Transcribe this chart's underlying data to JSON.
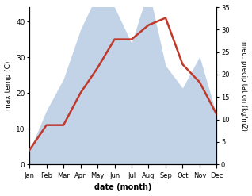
{
  "months": [
    "Jan",
    "Feb",
    "Mar",
    "Apr",
    "May",
    "Jun",
    "Jul",
    "Aug",
    "Sep",
    "Oct",
    "Nov",
    "Dec"
  ],
  "temperature": [
    4,
    11,
    11,
    20,
    27,
    35,
    35,
    39,
    41,
    28,
    23,
    14
  ],
  "precipitation": [
    3,
    12,
    19,
    30,
    38,
    35,
    27,
    39,
    22,
    17,
    24,
    11
  ],
  "temp_color": "#c0392b",
  "precip_color": "#b8cce4",
  "temp_ylim": [
    0,
    44
  ],
  "precip_ylim": [
    0,
    35
  ],
  "temp_yticks": [
    0,
    10,
    20,
    30,
    40
  ],
  "precip_yticks": [
    0,
    5,
    10,
    15,
    20,
    25,
    30,
    35
  ],
  "ylabel_left": "max temp (C)",
  "ylabel_right": "med. precipitation (kg/m2)",
  "xlabel": "date (month)",
  "background_color": "#ffffff",
  "line_width": 1.8,
  "figsize": [
    3.18,
    2.47
  ],
  "dpi": 100
}
